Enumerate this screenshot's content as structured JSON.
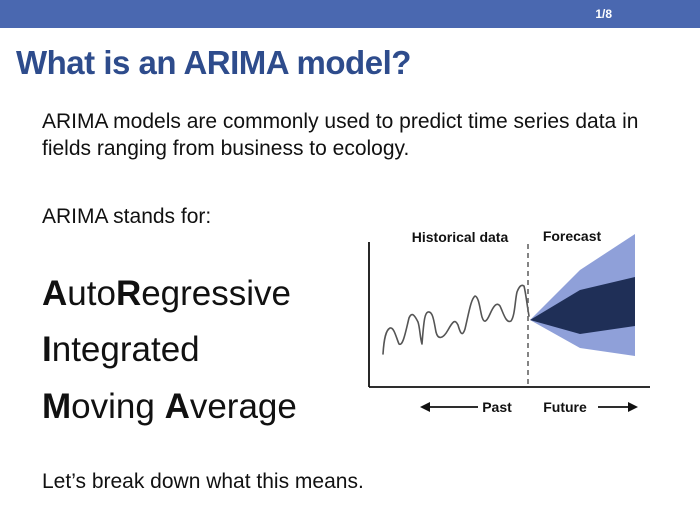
{
  "slide": {
    "page_number": "1/8",
    "title": "What is an ARIMA model?",
    "intro": "ARIMA models are commonly used to predict time series data in fields ranging from business to ecology.",
    "stands_for": "ARIMA stands for:",
    "acronym": [
      {
        "initial_1": "A",
        "rest_1": "uto",
        "initial_2": "R",
        "rest_2": "egressive"
      },
      {
        "initial_1": "I",
        "rest_1": "ntegrated"
      },
      {
        "initial_1": "M",
        "rest_1": "oving ",
        "initial_2": "A",
        "rest_2": "verage"
      }
    ],
    "closing": "Let’s break down what this means."
  },
  "figure": {
    "historical_label": "Historical data",
    "forecast_label": "Forecast",
    "past_label": "Past",
    "future_label": "Future",
    "colors": {
      "outer_band": "#8fa0d9",
      "inner_band": "#1f2f57",
      "series_line": "#555555",
      "divider": "#666666",
      "axis": "#111111"
    }
  }
}
